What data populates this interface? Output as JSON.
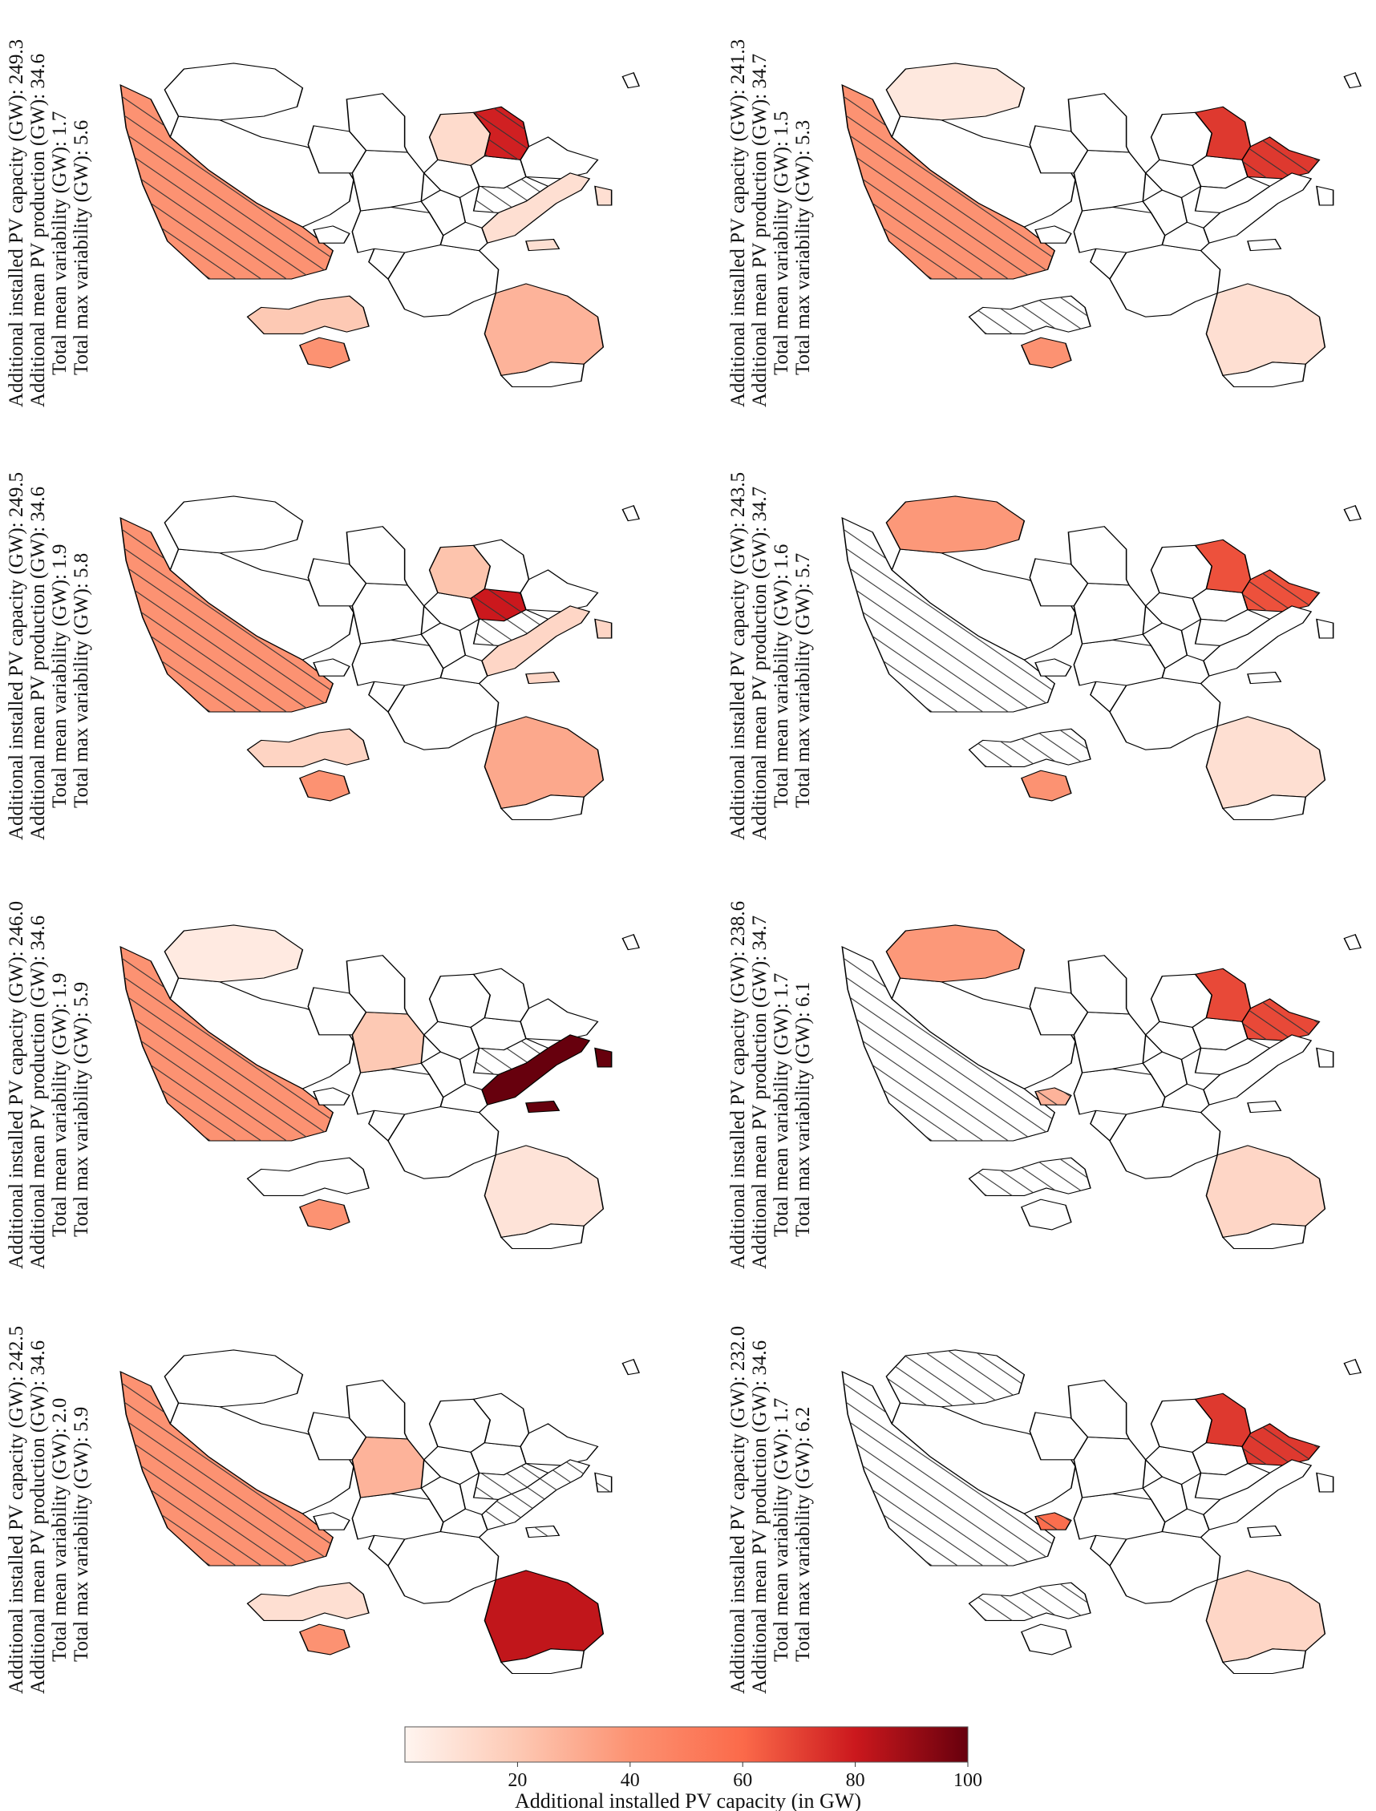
{
  "map": {
    "colormap": {
      "start": "#fff5f0",
      "mid": "#fb6a4a",
      "end": "#67000d",
      "vmin": 0,
      "vmax": 100
    },
    "outline_color": "#000000",
    "hatch_color": "#333333"
  },
  "panels": [
    {
      "id": "r1c1",
      "stats": [
        "Additional installed PV capacity (GW): 249.3",
        "Additional mean PV production (GW): 34.6",
        "Total mean variability (GW): 1.7",
        "Total max variability (GW): 5.6"
      ],
      "regions": [
        {
          "name": "Norway",
          "value": 40,
          "hatch": true
        },
        {
          "name": "Ireland",
          "value": 40,
          "hatch": false
        },
        {
          "name": "Great Britain",
          "value": 20,
          "hatch": false
        },
        {
          "name": "Spain",
          "value": 28,
          "hatch": false
        },
        {
          "name": "Italy",
          "value": 10,
          "hatch": false
        },
        {
          "name": "Romania",
          "value": 12,
          "hatch": false
        },
        {
          "name": "Bulgaria",
          "value": 78,
          "hatch": true
        },
        {
          "name": "Balkans",
          "value": 0,
          "hatch": true
        }
      ]
    },
    {
      "id": "r1c2",
      "stats": [
        "Additional installed PV capacity (GW): 241.3",
        "Additional mean PV production (GW): 34.7",
        "Total mean variability (GW): 1.5",
        "Total max variability (GW): 5.3"
      ],
      "regions": [
        {
          "name": "Norway",
          "value": 40,
          "hatch": true
        },
        {
          "name": "Ireland",
          "value": 40,
          "hatch": false
        },
        {
          "name": "Great Britain",
          "value": 0,
          "hatch": true
        },
        {
          "name": "Spain",
          "value": 10,
          "hatch": false
        },
        {
          "name": "Finland",
          "value": 6,
          "hatch": false
        },
        {
          "name": "Bulgaria",
          "value": 72,
          "hatch": false
        },
        {
          "name": "Greece",
          "value": 72,
          "hatch": true
        }
      ]
    },
    {
      "id": "r2c1",
      "stats": [
        "Additional installed PV capacity (GW): 249.5",
        "Additional mean PV production (GW): 34.6",
        "Total mean variability (GW): 1.9",
        "Total max variability (GW): 5.8"
      ],
      "regions": [
        {
          "name": "Norway",
          "value": 40,
          "hatch": true
        },
        {
          "name": "Ireland",
          "value": 40,
          "hatch": false
        },
        {
          "name": "Great Britain",
          "value": 15,
          "hatch": false
        },
        {
          "name": "Spain",
          "value": 32,
          "hatch": false
        },
        {
          "name": "Italy",
          "value": 14,
          "hatch": false
        },
        {
          "name": "Romania",
          "value": 22,
          "hatch": false
        },
        {
          "name": "Serbia",
          "value": 80,
          "hatch": true
        },
        {
          "name": "Balkans",
          "value": 0,
          "hatch": true
        }
      ]
    },
    {
      "id": "r2c2",
      "stats": [
        "Additional installed PV capacity (GW): 243.5",
        "Additional mean PV production (GW): 34.7",
        "Total mean variability (GW): 1.6",
        "Total max variability (GW): 5.7"
      ],
      "regions": [
        {
          "name": "Norway",
          "value": 0,
          "hatch": true
        },
        {
          "name": "Ireland",
          "value": 40,
          "hatch": false
        },
        {
          "name": "Great Britain",
          "value": 0,
          "hatch": true
        },
        {
          "name": "Spain",
          "value": 10,
          "hatch": false
        },
        {
          "name": "Finland",
          "value": 38,
          "hatch": false
        },
        {
          "name": "Bulgaria",
          "value": 66,
          "hatch": false
        },
        {
          "name": "Greece",
          "value": 66,
          "hatch": true
        }
      ]
    },
    {
      "id": "r3c1",
      "stats": [
        "Additional installed PV capacity (GW): 246.0",
        "Additional mean PV production (GW): 34.6",
        "Total mean variability (GW): 1.9",
        "Total max variability (GW): 5.9"
      ],
      "regions": [
        {
          "name": "Norway",
          "value": 40,
          "hatch": true
        },
        {
          "name": "Ireland",
          "value": 40,
          "hatch": false
        },
        {
          "name": "Spain",
          "value": 8,
          "hatch": false
        },
        {
          "name": "Italy",
          "value": 100,
          "hatch": false
        },
        {
          "name": "Poland",
          "value": 20,
          "hatch": false
        },
        {
          "name": "Finland",
          "value": 5,
          "hatch": false
        },
        {
          "name": "Balkans",
          "value": 0,
          "hatch": true
        }
      ]
    },
    {
      "id": "r3c2",
      "stats": [
        "Additional installed PV capacity (GW): 238.6",
        "Additional mean PV production (GW): 34.7",
        "Total mean variability (GW): 1.7",
        "Total max variability (GW): 6.1"
      ],
      "regions": [
        {
          "name": "Norway",
          "value": 0,
          "hatch": true
        },
        {
          "name": "Great Britain",
          "value": 0,
          "hatch": true
        },
        {
          "name": "Denmark",
          "value": 28,
          "hatch": true
        },
        {
          "name": "Spain",
          "value": 14,
          "hatch": false
        },
        {
          "name": "Finland",
          "value": 38,
          "hatch": false
        },
        {
          "name": "Bulgaria",
          "value": 68,
          "hatch": false
        },
        {
          "name": "Greece",
          "value": 68,
          "hatch": true
        }
      ]
    },
    {
      "id": "r4c1",
      "stats": [
        "Additional installed PV capacity (GW): 242.5",
        "Additional mean PV production (GW): 34.6",
        "Total mean variability (GW): 2.0",
        "Total max variability (GW): 5.9"
      ],
      "regions": [
        {
          "name": "Norway",
          "value": 40,
          "hatch": true
        },
        {
          "name": "Ireland",
          "value": 40,
          "hatch": false
        },
        {
          "name": "Great Britain",
          "value": 10,
          "hatch": false
        },
        {
          "name": "Spain",
          "value": 82,
          "hatch": false
        },
        {
          "name": "Italy",
          "value": 0,
          "hatch": true
        },
        {
          "name": "Poland",
          "value": 28,
          "hatch": false
        },
        {
          "name": "Balkans",
          "value": 0,
          "hatch": true
        }
      ]
    },
    {
      "id": "r4c2",
      "stats": [
        "Additional installed PV capacity (GW): 232.0",
        "Additional mean PV production (GW): 34.6",
        "Total mean variability (GW): 1.7",
        "Total max variability (GW): 6.2"
      ],
      "regions": [
        {
          "name": "Norway",
          "value": 0,
          "hatch": true
        },
        {
          "name": "Great Britain",
          "value": 0,
          "hatch": true
        },
        {
          "name": "Denmark",
          "value": 58,
          "hatch": true
        },
        {
          "name": "Spain",
          "value": 14,
          "hatch": false
        },
        {
          "name": "Finland",
          "value": 0,
          "hatch": true
        },
        {
          "name": "Bulgaria",
          "value": 72,
          "hatch": false
        },
        {
          "name": "Greece",
          "value": 72,
          "hatch": true
        }
      ]
    }
  ],
  "colorbar": {
    "ticks": [
      20,
      40,
      60,
      80,
      100
    ],
    "label": "Additional installed PV capacity (in GW)"
  }
}
